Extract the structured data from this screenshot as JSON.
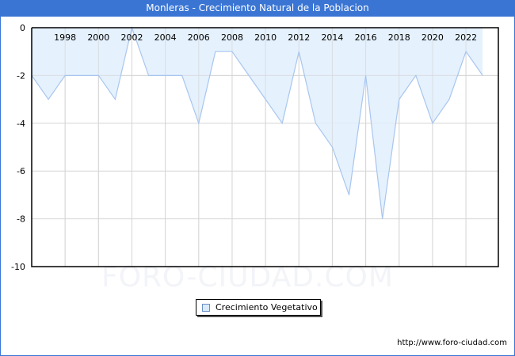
{
  "title": "Monleras - Crecimiento Natural de la Poblacion",
  "watermark": "FORO-CIUDAD.COM",
  "url": "http://www.foro-ciudad.com",
  "legend": {
    "label": "Crecimiento Vegetativo"
  },
  "colors": {
    "titlebar": "#3a75d4",
    "fill": "#e0effd",
    "line": "#a8c6ef",
    "grid": "#d6d6d6"
  },
  "chart_data": {
    "type": "area",
    "title": "Monleras - Crecimiento Natural de la Poblacion",
    "xlabel": "",
    "ylabel": "",
    "x": [
      1996,
      1997,
      1998,
      1999,
      2000,
      2001,
      2002,
      2003,
      2004,
      2005,
      2006,
      2007,
      2008,
      2009,
      2010,
      2011,
      2012,
      2013,
      2014,
      2015,
      2016,
      2017,
      2018,
      2019,
      2020,
      2021,
      2022,
      2023
    ],
    "series": [
      {
        "name": "Crecimiento Vegetativo",
        "values": [
          -2,
          -3,
          -2,
          -2,
          -2,
          -3,
          0,
          -2,
          -2,
          -2,
          -4,
          -1,
          -1,
          -2,
          -3,
          -4,
          -1,
          -4,
          -5,
          -7,
          -2,
          -8,
          -3,
          -2,
          -4,
          -3,
          -1,
          -2
        ]
      }
    ],
    "x_ticks": [
      1998,
      2000,
      2002,
      2004,
      2006,
      2008,
      2010,
      2012,
      2014,
      2016,
      2018,
      2020,
      2022
    ],
    "y_ticks": [
      0,
      -2,
      -4,
      -6,
      -8,
      -10
    ],
    "ylim": [
      -10,
      0
    ],
    "grid": true,
    "legend_position": "bottom-center"
  }
}
